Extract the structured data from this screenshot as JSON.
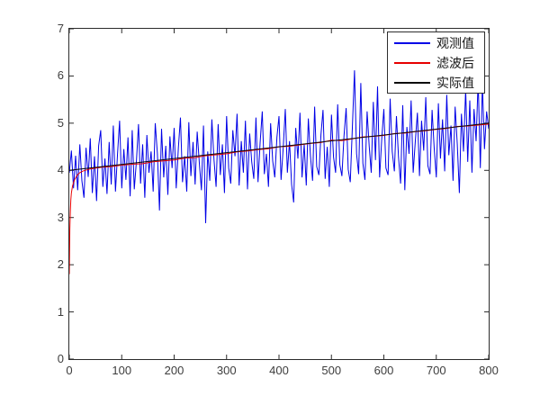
{
  "figure": {
    "background": "#ffffff",
    "axis_color": "#2b2b2b",
    "tick_label_color": "#3d3d3d",
    "tick_length": 5
  },
  "chart_data": {
    "type": "line",
    "title": "",
    "xlabel": "",
    "ylabel": "",
    "xlim": [
      0,
      800
    ],
    "ylim": [
      0,
      7
    ],
    "xticks": [
      "0",
      "100",
      "200",
      "300",
      "400",
      "500",
      "600",
      "700",
      "800"
    ],
    "xtick_values": [
      0,
      100,
      200,
      300,
      400,
      500,
      600,
      700,
      800
    ],
    "yticks": [
      "0",
      "1",
      "2",
      "3",
      "4",
      "5",
      "6",
      "7"
    ],
    "ytick_values": [
      0,
      1,
      2,
      3,
      4,
      5,
      6,
      7
    ],
    "grid": false,
    "legend": {
      "position": "top-right",
      "entries": [
        {
          "label": "观测值",
          "color": "#0000e6"
        },
        {
          "label": "滤波后",
          "color": "#e60000"
        },
        {
          "label": "实际值",
          "color": "#0a0a0a"
        }
      ]
    },
    "series": [
      {
        "name": "观测值",
        "color": "#0000e6",
        "width": 1,
        "x_start": 0,
        "x_step": 4,
        "y": [
          3.95,
          4.42,
          3.62,
          4.31,
          3.58,
          4.55,
          3.78,
          3.42,
          4.48,
          3.86,
          4.68,
          3.52,
          4.3,
          3.35,
          4.52,
          4.85,
          3.65,
          4.25,
          3.5,
          4.6,
          3.7,
          4.95,
          3.55,
          4.35,
          5.05,
          3.62,
          4.45,
          3.8,
          4.7,
          3.45,
          4.85,
          3.6,
          4.2,
          4.98,
          3.72,
          4.55,
          3.42,
          4.75,
          3.95,
          4.4,
          3.55,
          5.0,
          4.35,
          3.15,
          4.88,
          3.85,
          4.52,
          3.48,
          4.72,
          4.05,
          4.9,
          3.62,
          4.48,
          5.12,
          3.75,
          4.3,
          3.55,
          5.02,
          3.88,
          4.6,
          3.7,
          4.82,
          4.15,
          3.58,
          4.95,
          2.88,
          4.4,
          3.78,
          5.08,
          4.22,
          3.65,
          4.98,
          3.9,
          4.55,
          3.52,
          5.15,
          4.05,
          3.72,
          4.85,
          4.3,
          5.2,
          3.68,
          4.62,
          3.95,
          5.05,
          3.6,
          4.78,
          4.18,
          3.82,
          5.12,
          3.75,
          4.58,
          5.25,
          3.92,
          4.35,
          3.65,
          5.0,
          4.2,
          3.85,
          4.7,
          5.15,
          3.8,
          4.48,
          5.3,
          3.95,
          4.62,
          3.7,
          3.32,
          4.9,
          4.25,
          5.22,
          3.85,
          4.55,
          3.68,
          5.1,
          4.32,
          3.78,
          5.35,
          4.08,
          3.9,
          4.75,
          5.28,
          3.82,
          4.5,
          3.65,
          5.18,
          4.28,
          3.95,
          5.4,
          4.12,
          3.88,
          4.72,
          5.32,
          4.02,
          3.75,
          4.95,
          6.12,
          4.35,
          3.92,
          5.85,
          4.15,
          3.8,
          5.25,
          4.52,
          3.95,
          5.45,
          4.22,
          5.78,
          3.85,
          4.68,
          5.3,
          4.05,
          3.9,
          5.52,
          4.4,
          3.98,
          5.15,
          4.28,
          3.72,
          5.38,
          3.58,
          4.92,
          4.35,
          5.48,
          3.95,
          4.6,
          5.22,
          3.88,
          5.05,
          4.42,
          5.55,
          4.1,
          3.92,
          5.28,
          4.48,
          3.85,
          5.42,
          4.25,
          5.08,
          3.98,
          5.6,
          4.32,
          4.95,
          3.78,
          5.35,
          4.55,
          3.52,
          5.2,
          4.4,
          5.72,
          4.18,
          5.48,
          3.95,
          5.3,
          4.62,
          5.92,
          4.05,
          5.85,
          4.45,
          5.25,
          4.88
        ]
      },
      {
        "name": "滤波后",
        "color": "#e60000",
        "width": 1,
        "x": [
          0,
          1,
          2,
          3,
          4,
          6,
          8,
          10,
          13,
          16,
          20,
          25,
          30,
          40,
          50,
          65,
          80,
          100,
          120,
          140,
          160,
          180,
          200,
          220,
          240,
          260,
          280,
          300,
          320,
          340,
          360,
          380,
          400,
          420,
          440,
          460,
          480,
          500,
          520,
          540,
          560,
          580,
          600,
          620,
          640,
          660,
          680,
          700,
          720,
          740,
          760,
          780,
          800
        ],
        "y": [
          1.8,
          2.75,
          3.15,
          3.38,
          3.52,
          3.66,
          3.74,
          3.8,
          3.86,
          3.91,
          3.95,
          3.98,
          4.0,
          4.03,
          4.05,
          4.07,
          4.08,
          4.11,
          4.13,
          4.14,
          4.18,
          4.2,
          4.22,
          4.26,
          4.27,
          4.31,
          4.33,
          4.35,
          4.39,
          4.41,
          4.44,
          4.46,
          4.5,
          4.51,
          4.54,
          4.57,
          4.59,
          4.64,
          4.63,
          4.67,
          4.71,
          4.72,
          4.74,
          4.78,
          4.79,
          4.82,
          4.84,
          4.87,
          4.89,
          4.93,
          4.94,
          4.96,
          4.98
        ]
      },
      {
        "name": "实际值",
        "color": "#0a0a0a",
        "width": 1,
        "x": [
          0,
          800
        ],
        "y": [
          4.0,
          5.0
        ]
      }
    ]
  }
}
